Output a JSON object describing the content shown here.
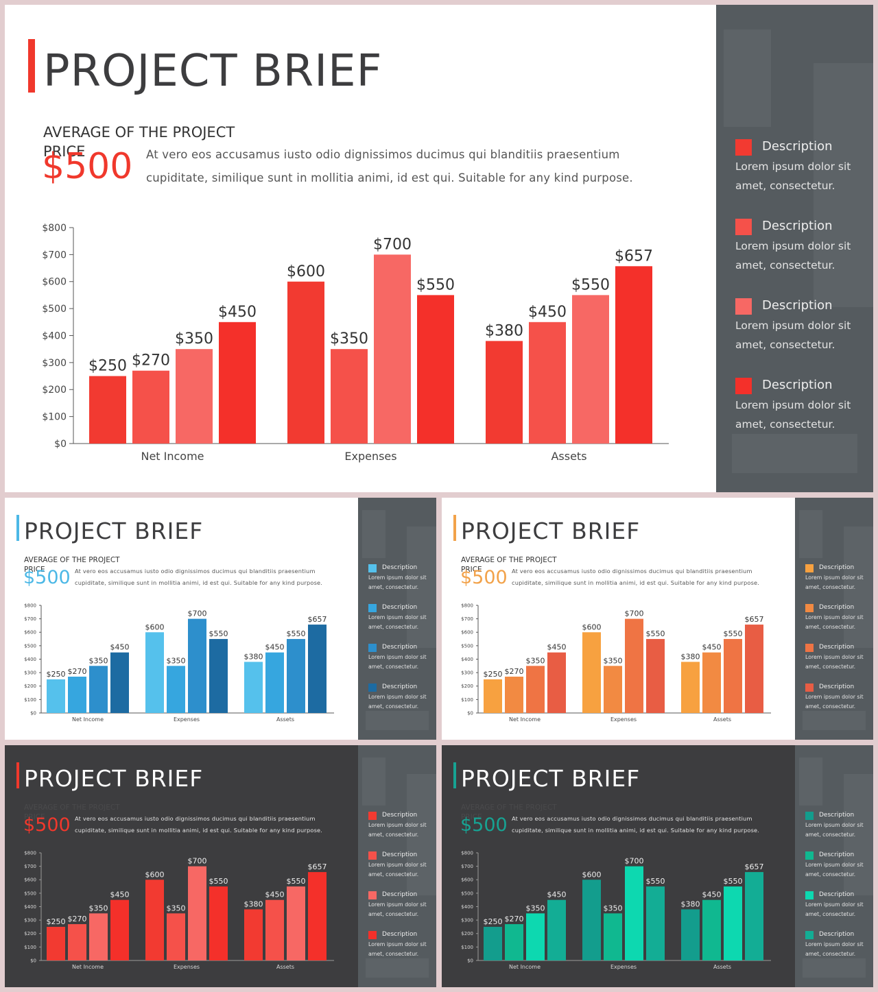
{
  "slides": [
    {
      "theme": "light-red",
      "title": "PROJECT BRIEF",
      "subtitle": "AVERAGE OF THE PROJECT PRICE",
      "price": "$500",
      "description": "At vero eos accusamus iusto odio dignissimos ducimus qui blanditiis praesentium cupiditate, similique sunt in mollitia animi, id est qui. Suitable for any kind purpose.",
      "colors": {
        "accent": "#f0382c",
        "series": [
          "#f23a31",
          "#f5514a",
          "#f76864",
          "#f4302a"
        ],
        "side_squares": [
          "#f23a31",
          "#f5514a",
          "#f76864",
          "#f4302a"
        ]
      },
      "side_items": [
        {
          "heading": "Description",
          "body": "Lorem ipsum dolor sit amet, consectetur."
        },
        {
          "heading": "Description",
          "body": "Lorem ipsum dolor sit amet, consectetur."
        },
        {
          "heading": "Description",
          "body": "Lorem ipsum dolor sit amet, consectetur."
        },
        {
          "heading": "Description",
          "body": "Lorem ipsum dolor sit amet, consectetur."
        }
      ]
    },
    {
      "theme": "light-blue",
      "title": "PROJECT BRIEF",
      "subtitle": "AVERAGE OF THE PROJECT PRICE",
      "price": "$500",
      "description": "At vero eos accusamus iusto odio dignissimos ducimus qui blanditiis praesentium cupiditate, similique sunt in mollitia animi, id est qui. Suitable for any kind purpose.",
      "colors": {
        "accent": "#4cb8e6",
        "series": [
          "#55c1ec",
          "#36a6df",
          "#2d8fcc",
          "#1d6ba2"
        ],
        "side_squares": [
          "#55c1ec",
          "#36a6df",
          "#2d8fcc",
          "#1d6ba2"
        ]
      },
      "side_items": [
        {
          "heading": "Description",
          "body": "Lorem ipsum dolor sit amet, consectetur."
        },
        {
          "heading": "Description",
          "body": "Lorem ipsum dolor sit amet, consectetur."
        },
        {
          "heading": "Description",
          "body": "Lorem ipsum dolor sit amet, consectetur."
        },
        {
          "heading": "Description",
          "body": "Lorem ipsum dolor sit amet, consectetur."
        }
      ]
    },
    {
      "theme": "light-orange",
      "title": "PROJECT BRIEF",
      "subtitle": "AVERAGE OF THE PROJECT PRICE",
      "price": "$500",
      "description": "At vero eos accusamus iusto odio dignissimos ducimus qui blanditiis praesentium cupiditate, similique sunt in mollitia animi, id est qui. Suitable for any kind purpose.",
      "colors": {
        "accent": "#f2a24a",
        "series": [
          "#f7a140",
          "#f28a42",
          "#ef7444",
          "#e85d44"
        ],
        "side_squares": [
          "#f7a140",
          "#f28a42",
          "#ef7444",
          "#e85d44"
        ]
      },
      "side_items": [
        {
          "heading": "Description",
          "body": "Lorem ipsum dolor sit amet, consectetur."
        },
        {
          "heading": "Description",
          "body": "Lorem ipsum dolor sit amet, consectetur."
        },
        {
          "heading": "Description",
          "body": "Lorem ipsum dolor sit amet, consectetur."
        },
        {
          "heading": "Description",
          "body": "Lorem ipsum dolor sit amet, consectetur."
        }
      ]
    },
    {
      "theme": "dark-red",
      "title": "PROJECT BRIEF",
      "subtitle": "AVERAGE OF THE PROJECT PRICE",
      "price": "$500",
      "description": "At vero eos accusamus iusto odio dignissimos ducimus qui blanditiis praesentium cupiditate, similique sunt in mollitia animi, id est qui. Suitable for any kind purpose.",
      "colors": {
        "accent": "#f0382c",
        "series": [
          "#f23a31",
          "#f5514a",
          "#f76864",
          "#f4302a"
        ],
        "side_squares": [
          "#f23a31",
          "#f5514a",
          "#f76864",
          "#f4302a"
        ]
      },
      "side_items": [
        {
          "heading": "Description",
          "body": "Lorem ipsum dolor sit amet, consectetur."
        },
        {
          "heading": "Description",
          "body": "Lorem ipsum dolor sit amet, consectetur."
        },
        {
          "heading": "Description",
          "body": "Lorem ipsum dolor sit amet, consectetur."
        },
        {
          "heading": "Description",
          "body": "Lorem ipsum dolor sit amet, consectetur."
        }
      ]
    },
    {
      "theme": "dark-teal",
      "title": "PROJECT BRIEF",
      "subtitle": "AVERAGE OF THE PROJECT PRICE",
      "price": "$500",
      "description": "At vero eos accusamus iusto odio dignissimos ducimus qui blanditiis praesentium cupiditate, similique sunt in mollitia animi, id est qui. Suitable for any kind purpose.",
      "colors": {
        "accent": "#17a393",
        "series": [
          "#139d8d",
          "#10b890",
          "#0dd8b0",
          "#13ad95"
        ],
        "side_squares": [
          "#139d8d",
          "#10b890",
          "#0dd8b0",
          "#13ad95"
        ]
      },
      "side_items": [
        {
          "heading": "Description",
          "body": "Lorem ipsum dolor sit amet, consectetur."
        },
        {
          "heading": "Description",
          "body": "Lorem ipsum dolor sit amet, consectetur."
        },
        {
          "heading": "Description",
          "body": "Lorem ipsum dolor sit amet, consectetur."
        },
        {
          "heading": "Description",
          "body": "Lorem ipsum dolor sit amet, consectetur."
        }
      ]
    }
  ],
  "chart_data": {
    "type": "bar",
    "categories": [
      "Net Income",
      "Expenses",
      "Assets"
    ],
    "values": [
      [
        250,
        270,
        350,
        450
      ],
      [
        600,
        350,
        700,
        550
      ],
      [
        380,
        450,
        550,
        657
      ]
    ],
    "value_labels": [
      [
        "$250",
        "$270",
        "$350",
        "$450"
      ],
      [
        "$600",
        "$350",
        "$700",
        "$550"
      ],
      [
        "$380",
        "$450",
        "$550",
        "$657"
      ]
    ],
    "y_ticks": [
      "$0",
      "$100",
      "$200",
      "$300",
      "$400",
      "$500",
      "$600",
      "$700",
      "$800"
    ],
    "ylim": [
      0,
      800
    ],
    "title": "",
    "xlabel": "",
    "ylabel": "",
    "grid": false,
    "legend": "none"
  }
}
